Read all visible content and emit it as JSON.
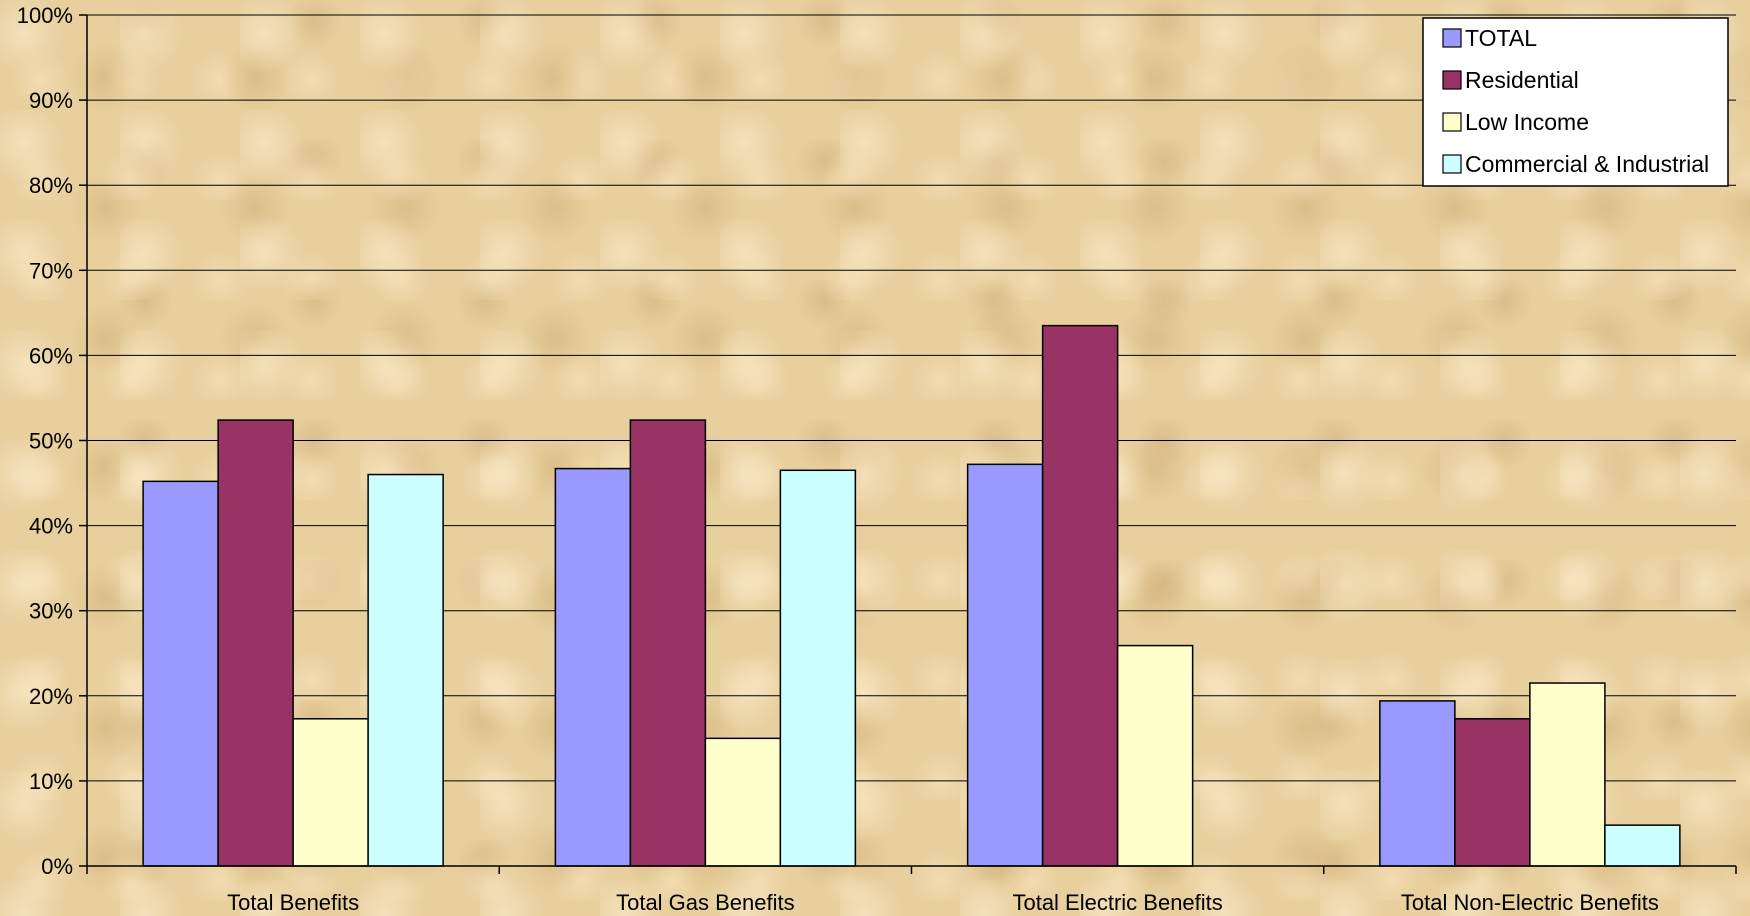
{
  "chart_data": {
    "type": "bar",
    "categories": [
      "Total Benefits",
      "Total Gas Benefits",
      "Total Electric Benefits",
      "Total Non-Electric Benefits"
    ],
    "series": [
      {
        "name": "TOTAL",
        "color": "#9999ff",
        "values": [
          45.2,
          46.7,
          47.2,
          19.4
        ]
      },
      {
        "name": "Residential",
        "color": "#993366",
        "values": [
          52.4,
          52.4,
          63.5,
          17.3
        ]
      },
      {
        "name": "Low Income",
        "color": "#ffffcc",
        "values": [
          17.3,
          15.0,
          25.9,
          21.5
        ]
      },
      {
        "name": "Commercial & Industrial",
        "color": "#ccffff",
        "values": [
          46.0,
          46.5,
          null,
          4.8
        ]
      }
    ],
    "ylim": [
      0,
      100
    ],
    "yticks": [
      "0%",
      "10%",
      "20%",
      "30%",
      "40%",
      "50%",
      "60%",
      "70%",
      "80%",
      "90%",
      "100%"
    ],
    "grid": true,
    "legend_position": "top-right"
  }
}
